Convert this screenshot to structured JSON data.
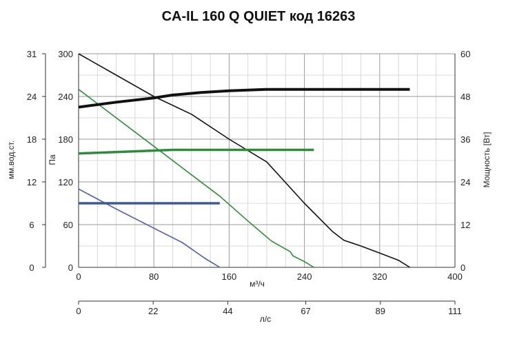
{
  "chart_data": {
    "type": "line",
    "title": "CA-IL 160 Q QUIET код 16263",
    "x_flow": {
      "label": "м³/ч",
      "ticks": [
        "0",
        "80",
        "160",
        "240",
        "320",
        "400"
      ],
      "range": [
        0,
        400
      ]
    },
    "x_ls": {
      "label": "л/с",
      "ticks": [
        "0",
        "22",
        "44",
        "67",
        "89",
        "111"
      ],
      "values": [
        0,
        22,
        44,
        67,
        89,
        111
      ],
      "range": [
        0,
        111
      ]
    },
    "y_pa": {
      "label": "Па",
      "ticks": [
        "0",
        "60",
        "120",
        "180",
        "240",
        "300"
      ],
      "range": [
        0,
        300
      ]
    },
    "y_mm": {
      "label": "мм.вод.ст.",
      "ticks": [
        "0",
        "6",
        "12",
        "18",
        "24",
        "31"
      ],
      "range": [
        0,
        31
      ]
    },
    "y_power": {
      "label": "Мощность [Вт]",
      "ticks": [
        "0",
        "12",
        "24",
        "36",
        "48",
        "60"
      ],
      "range": [
        0,
        60
      ]
    },
    "grid": true,
    "series": [
      {
        "kind": "pressure",
        "color": "#111111",
        "x": [
          0,
          40,
          80,
          120,
          160,
          200,
          240,
          270,
          282,
          300,
          320,
          340,
          352
        ],
        "y": [
          300,
          270,
          240,
          215,
          180,
          148,
          90,
          50,
          38,
          30,
          20,
          10,
          0
        ]
      },
      {
        "kind": "pressure",
        "color": "#2e8b3a",
        "x": [
          0,
          40,
          80,
          120,
          150,
          180,
          205,
          225,
          228,
          240,
          250
        ],
        "y": [
          250,
          210,
          170,
          130,
          100,
          65,
          37,
          22,
          16,
          8,
          0
        ]
      },
      {
        "kind": "pressure",
        "color": "#4a5ba8",
        "x": [
          0,
          40,
          80,
          110,
          135,
          150
        ],
        "y": [
          110,
          82,
          55,
          35,
          12,
          0
        ]
      },
      {
        "kind": "power",
        "color": "#111111",
        "x": [
          0,
          40,
          80,
          100,
          130,
          160,
          200,
          240,
          280,
          320,
          352
        ],
        "y": [
          45,
          46.4,
          47.6,
          48.4,
          49.1,
          49.6,
          50,
          50,
          50,
          50,
          50
        ]
      },
      {
        "kind": "power",
        "color": "#2e8b3a",
        "x": [
          0,
          60,
          100,
          150,
          200,
          250
        ],
        "y": [
          32,
          32.6,
          33,
          33,
          33,
          33
        ]
      },
      {
        "kind": "power",
        "color": "#3a5a9a",
        "x": [
          0,
          150
        ],
        "y": [
          18,
          18
        ]
      }
    ]
  }
}
